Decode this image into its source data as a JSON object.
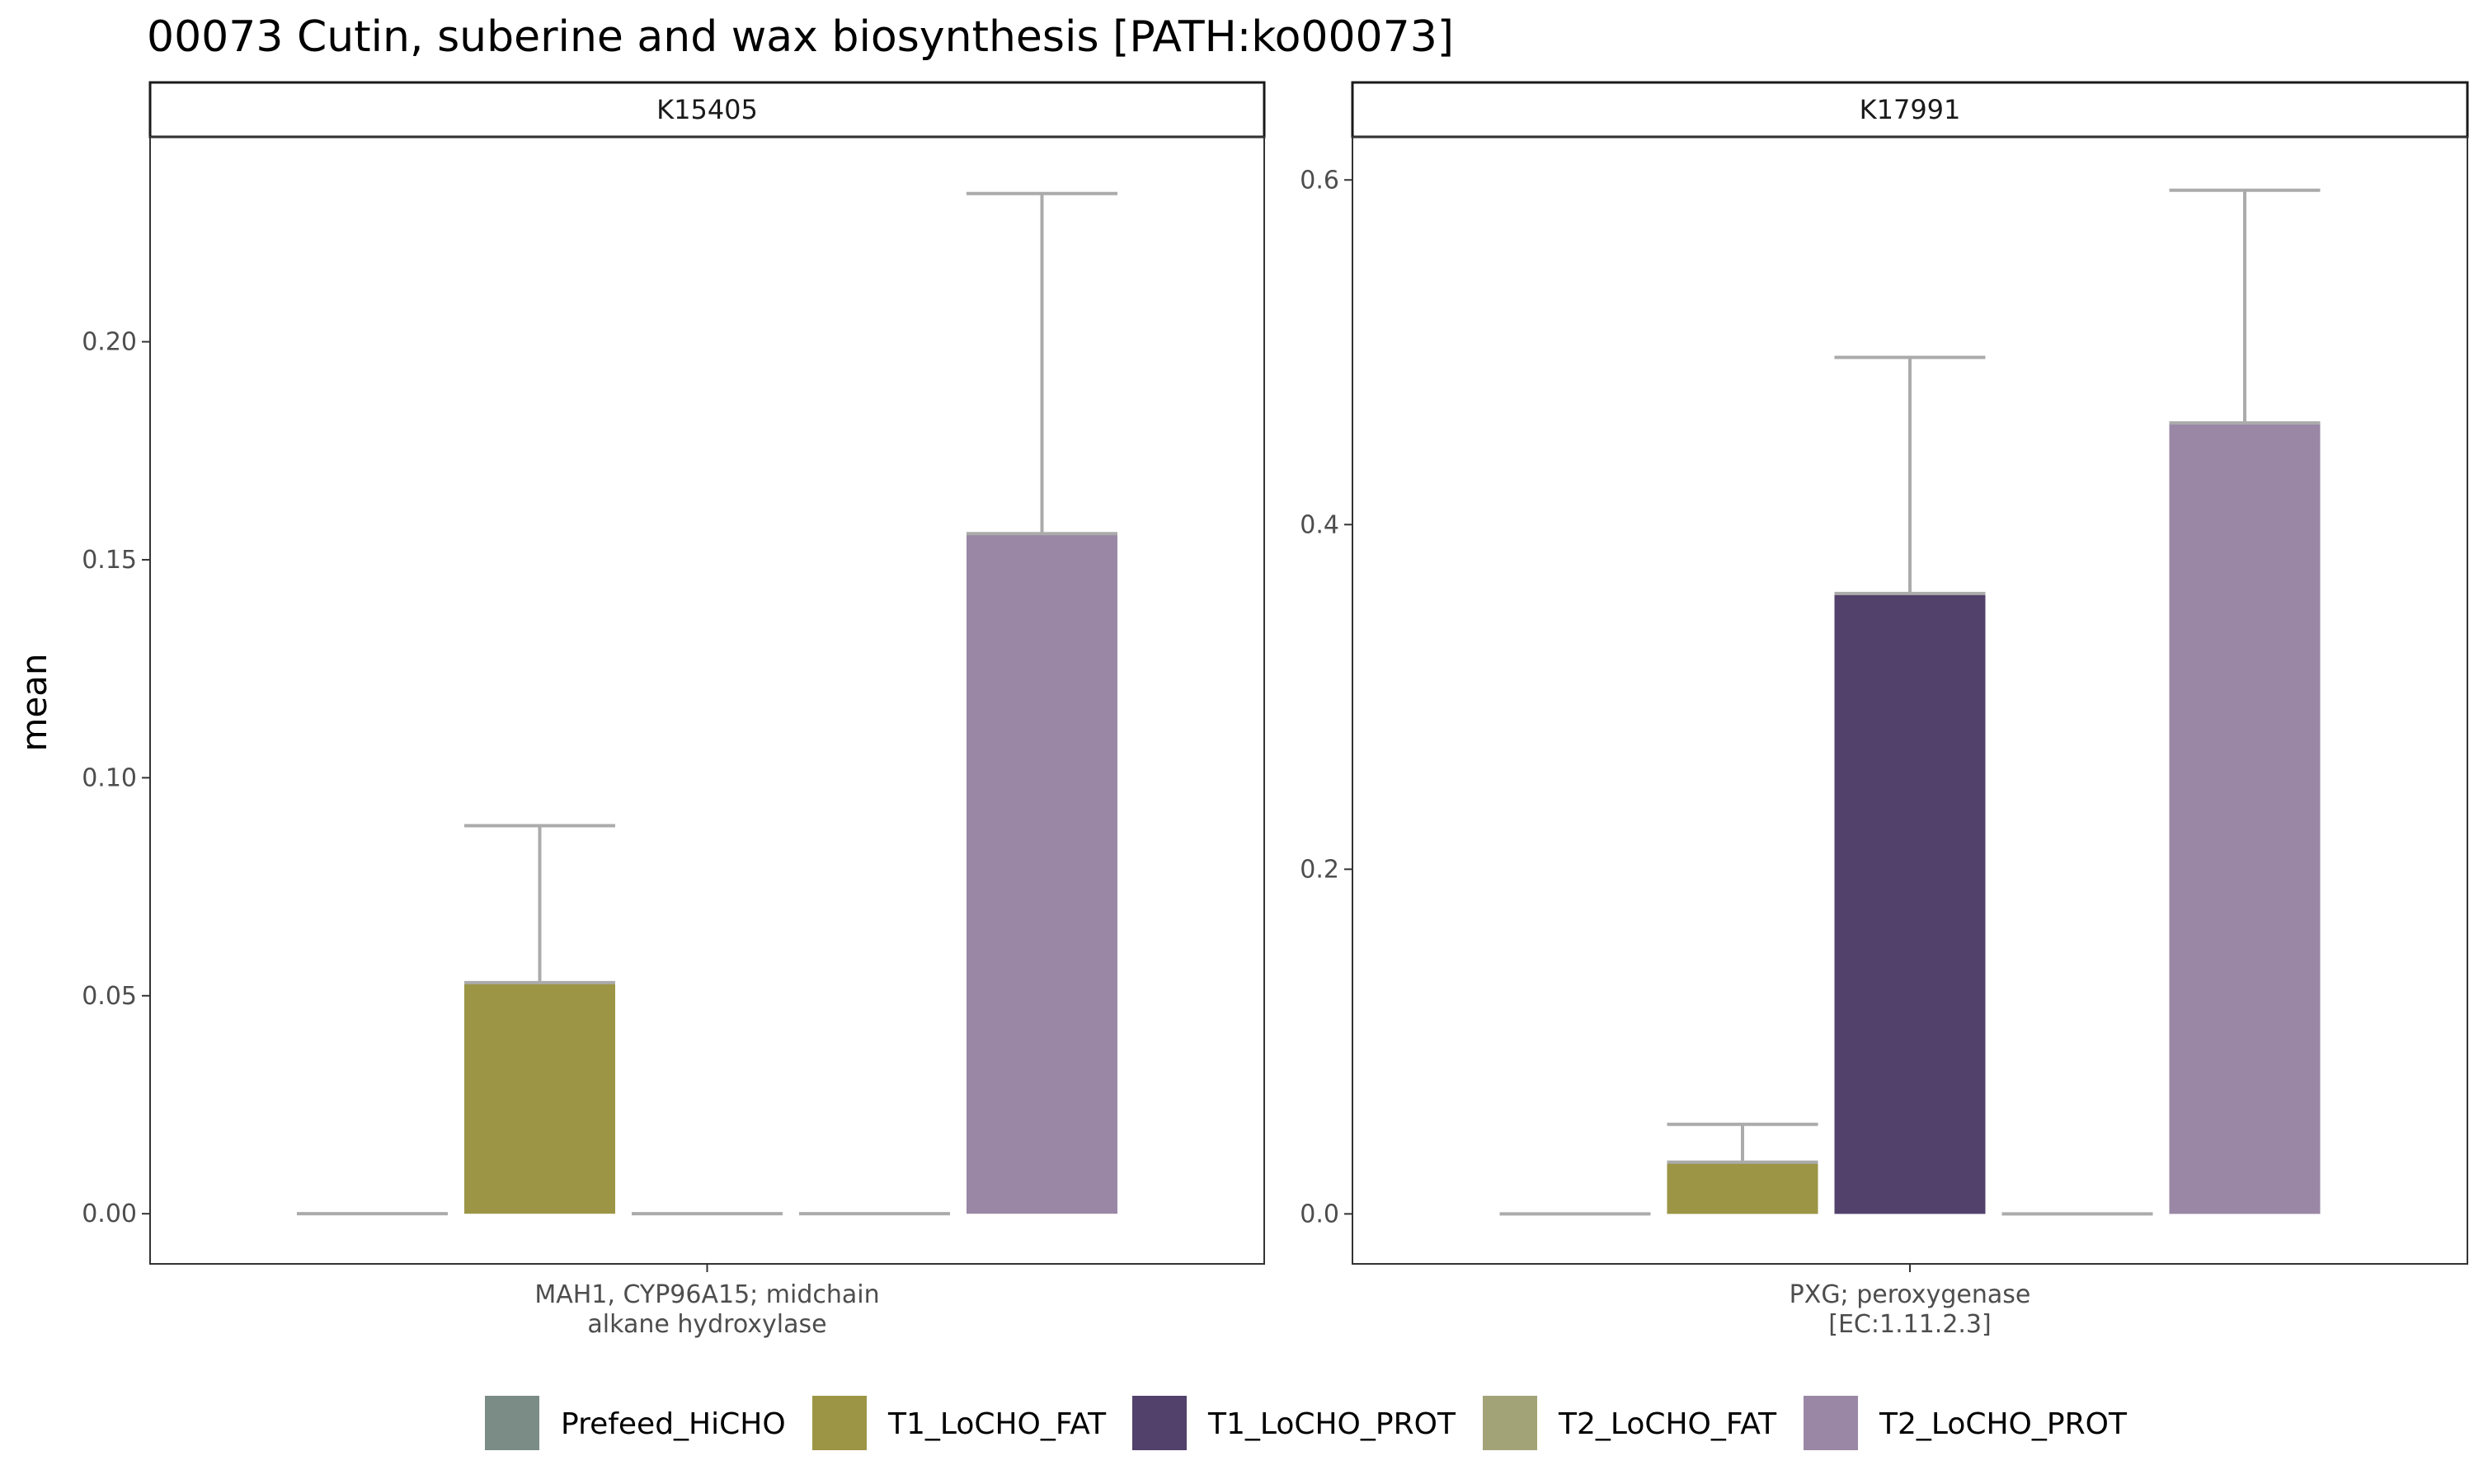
{
  "title": "00073 Cutin, suberine and wax biosynthesis [PATH:ko00073]",
  "ylabel": "mean",
  "legend": {
    "position": "bottom",
    "items": [
      {
        "name": "Prefeed_HiCHO",
        "color": "#7a8c85"
      },
      {
        "name": "T1_LoCHO_FAT",
        "color": "#9c9545"
      },
      {
        "name": "T1_LoCHO_PROT",
        "color": "#52416b"
      },
      {
        "name": "T2_LoCHO_FAT",
        "color": "#a3a378"
      },
      {
        "name": "T2_LoCHO_PROT",
        "color": "#9a87a5"
      }
    ]
  },
  "chart_data": [
    {
      "type": "bar",
      "panel": "K15405",
      "category": [
        "MAH1, CYP96A15; midchain",
        "alkane hydroxylase"
      ],
      "ylim": [
        -0.0115,
        0.247
      ],
      "yticks": [
        0.0,
        0.05,
        0.1,
        0.15,
        0.2
      ],
      "ytick_labels": [
        "0.00",
        "0.05",
        "0.10",
        "0.15",
        "0.20"
      ],
      "grid": false,
      "series": [
        {
          "name": "Prefeed_HiCHO",
          "value": 0.0,
          "upper": 0.0
        },
        {
          "name": "T1_LoCHO_FAT",
          "value": 0.053,
          "upper": 0.089
        },
        {
          "name": "T1_LoCHO_PROT",
          "value": 0.0,
          "upper": 0.0
        },
        {
          "name": "T2_LoCHO_FAT",
          "value": 0.0,
          "upper": 0.0
        },
        {
          "name": "T2_LoCHO_PROT",
          "value": 0.156,
          "upper": 0.234
        }
      ]
    },
    {
      "type": "bar",
      "panel": "K17991",
      "category": [
        "PXG; peroxygenase",
        "[EC:1.11.2.3]"
      ],
      "ylim": [
        -0.029,
        0.625
      ],
      "yticks": [
        0.0,
        0.2,
        0.4,
        0.6
      ],
      "ytick_labels": [
        "0.0",
        "0.2",
        "0.4",
        "0.6"
      ],
      "grid": false,
      "series": [
        {
          "name": "Prefeed_HiCHO",
          "value": 0.0,
          "upper": 0.0
        },
        {
          "name": "T1_LoCHO_FAT",
          "value": 0.03,
          "upper": 0.052
        },
        {
          "name": "T1_LoCHO_PROT",
          "value": 0.36,
          "upper": 0.497
        },
        {
          "name": "T2_LoCHO_FAT",
          "value": 0.0,
          "upper": 0.0
        },
        {
          "name": "T2_LoCHO_PROT",
          "value": 0.459,
          "upper": 0.594
        }
      ]
    }
  ]
}
